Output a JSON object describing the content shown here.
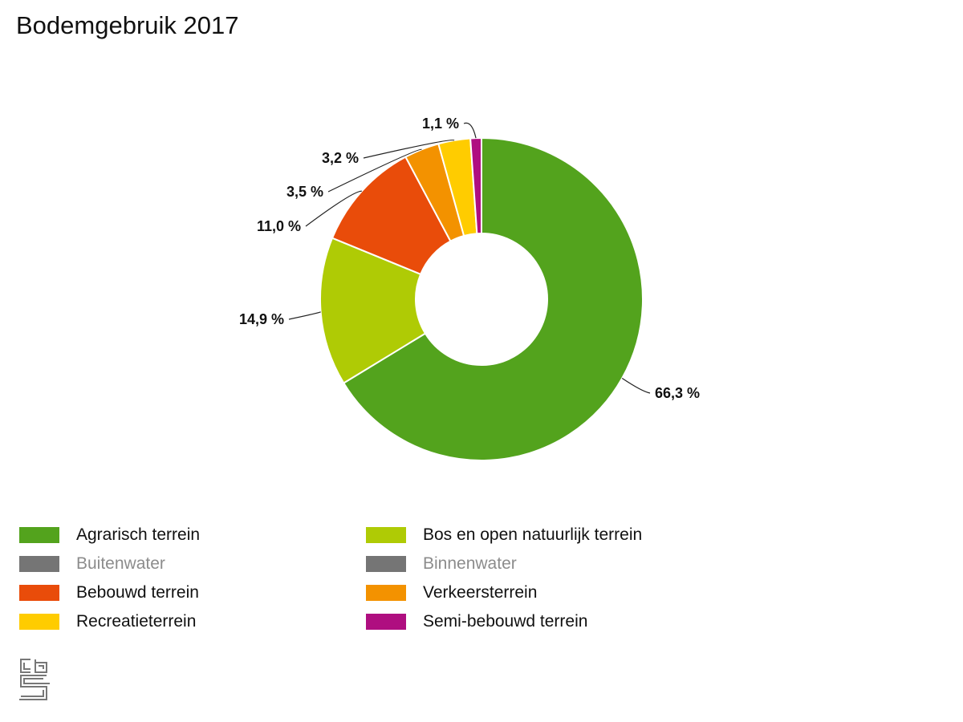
{
  "chart_data": {
    "type": "pie",
    "title": "Bodemgebruik 2017",
    "slices": [
      {
        "name": "Agrarisch terrein",
        "value": 66.3,
        "label": "66,3 %",
        "color": "#53a31d"
      },
      {
        "name": "Bos en open natuurlijk terrein",
        "value": 14.9,
        "label": "14,9 %",
        "color": "#afcb05"
      },
      {
        "name": "Bebouwd terrein",
        "value": 11.0,
        "label": "11,0 %",
        "color": "#e94c0a"
      },
      {
        "name": "Verkeersterrein",
        "value": 3.5,
        "label": "3,5 %",
        "color": "#f39200"
      },
      {
        "name": "Recreatieterrein",
        "value": 3.2,
        "label": "3,2 %",
        "color": "#ffcc00"
      },
      {
        "name": "Semi-bebouwd terrein",
        "value": 1.1,
        "label": "1,1 %",
        "color": "#af0e80"
      }
    ],
    "legend": [
      {
        "label": "Agrarisch terrein",
        "color": "#53a31d",
        "enabled": true
      },
      {
        "label": "Bos en open natuurlijk terrein",
        "color": "#afcb05",
        "enabled": true
      },
      {
        "label": "Buitenwater",
        "color": "#757575",
        "enabled": false
      },
      {
        "label": "Binnenwater",
        "color": "#757575",
        "enabled": false
      },
      {
        "label": "Bebouwd terrein",
        "color": "#e94c0a",
        "enabled": true
      },
      {
        "label": "Verkeersterrein",
        "color": "#f39200",
        "enabled": true
      },
      {
        "label": "Recreatieterrein",
        "color": "#ffcc00",
        "enabled": true
      },
      {
        "label": "Semi-bebouwd terrein",
        "color": "#af0e80",
        "enabled": true
      }
    ],
    "legend_placement": "bottom"
  },
  "logo": {
    "name": "cbs-logo-icon",
    "color": "#777777"
  }
}
